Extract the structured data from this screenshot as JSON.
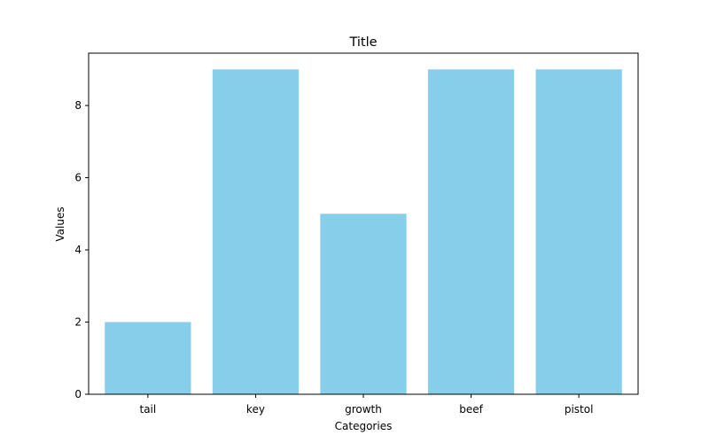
{
  "chart_data": {
    "type": "bar",
    "title": "Title",
    "xlabel": "Categories",
    "ylabel": "Values",
    "categories": [
      "tail",
      "key",
      "growth",
      "beef",
      "pistol"
    ],
    "values": [
      2,
      9,
      5,
      9,
      9
    ],
    "ylim": [
      0,
      9.45
    ],
    "yticks": [
      0,
      2,
      4,
      6,
      8
    ],
    "bar_color": "#87CEEB",
    "grid": false,
    "legend": "none"
  }
}
